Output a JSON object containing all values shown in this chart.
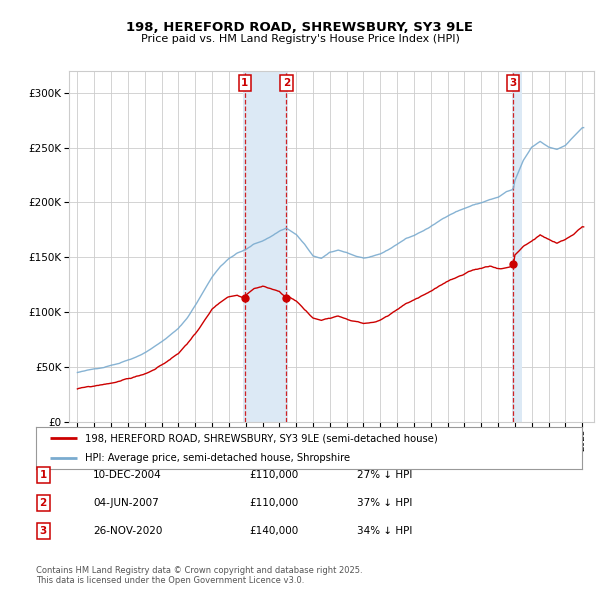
{
  "title_line1": "198, HEREFORD ROAD, SHREWSBURY, SY3 9LE",
  "title_line2": "Price paid vs. HM Land Registry's House Price Index (HPI)",
  "legend_label_red": "198, HEREFORD ROAD, SHREWSBURY, SY3 9LE (semi-detached house)",
  "legend_label_blue": "HPI: Average price, semi-detached house, Shropshire",
  "footer": "Contains HM Land Registry data © Crown copyright and database right 2025.\nThis data is licensed under the Open Government Licence v3.0.",
  "sale1_label": "1",
  "sale1_date": "10-DEC-2004",
  "sale1_price": "£110,000",
  "sale1_hpi": "27% ↓ HPI",
  "sale1_x": 2004.95,
  "sale2_label": "2",
  "sale2_date": "04-JUN-2007",
  "sale2_price": "£110,000",
  "sale2_hpi": "37% ↓ HPI",
  "sale2_x": 2007.42,
  "sale3_label": "3",
  "sale3_date": "26-NOV-2020",
  "sale3_price": "£140,000",
  "sale3_hpi": "34% ↓ HPI",
  "sale3_x": 2020.9,
  "red_color": "#cc0000",
  "blue_color": "#7aabcf",
  "shading_color": "#dce9f5",
  "vline_color": "#cc0000",
  "grid_color": "#cccccc",
  "background_color": "#ffffff",
  "ylim_min": 0,
  "ylim_max": 320000,
  "xlim_min": 1994.5,
  "xlim_max": 2025.7
}
